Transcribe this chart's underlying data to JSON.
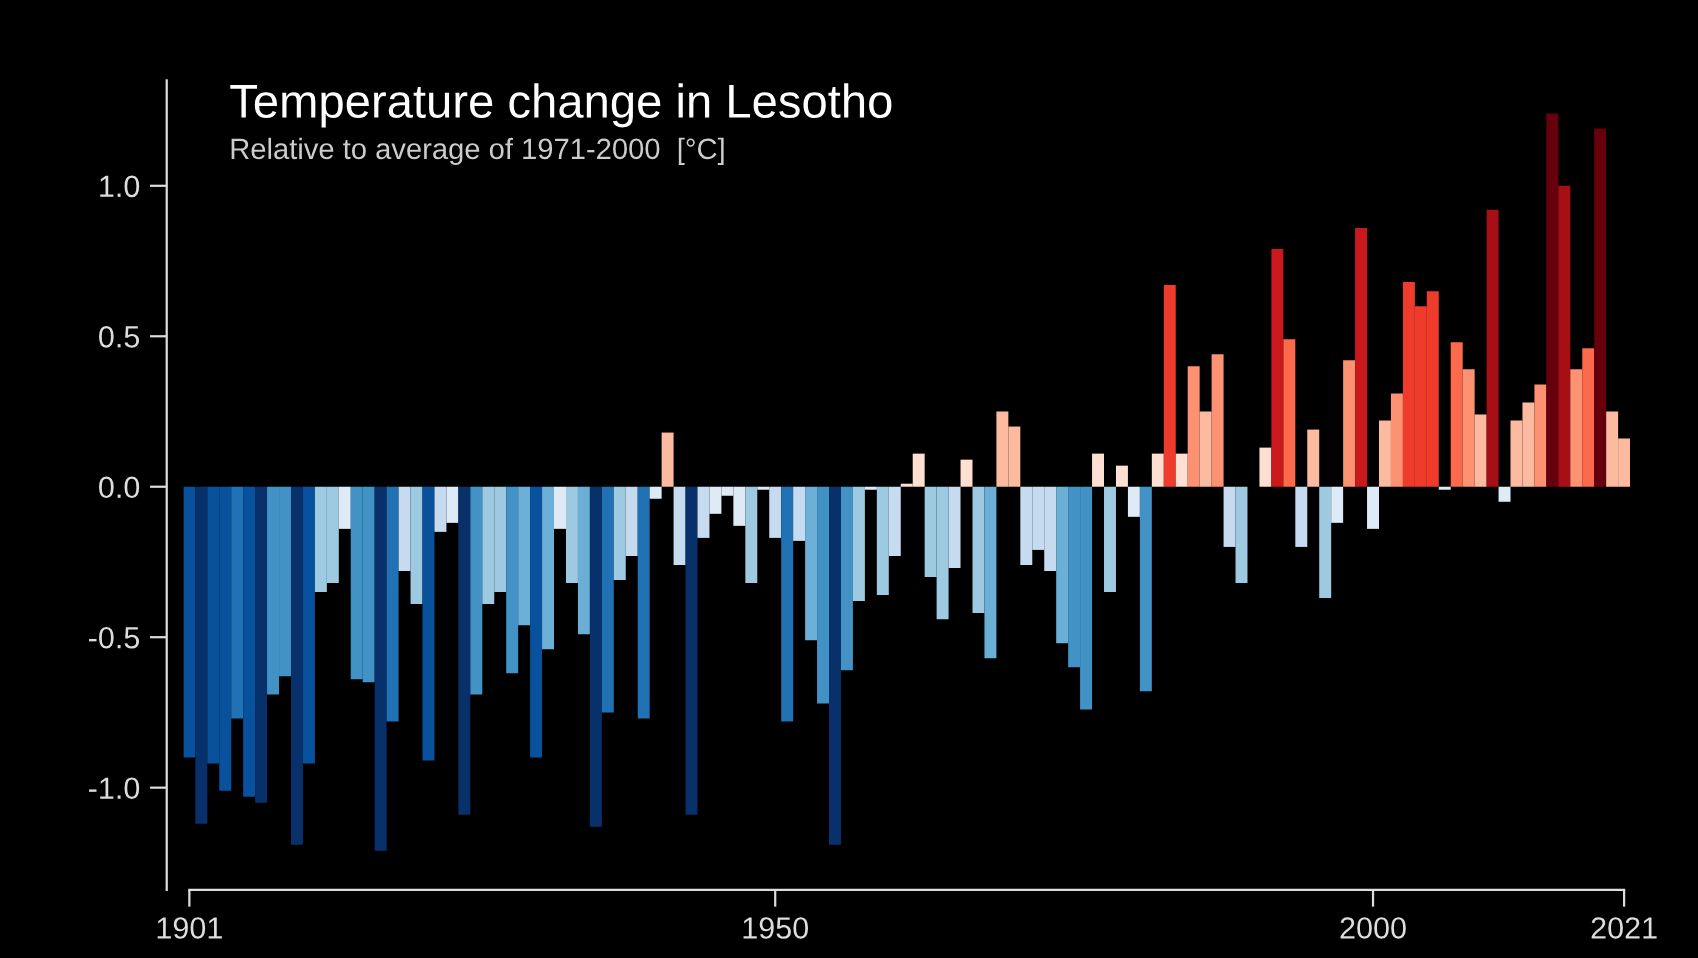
{
  "chart_data": {
    "type": "bar",
    "title": "Temperature change in Lesotho",
    "subtitle": "Relative to average of 1971-2000  [°C]",
    "x": [
      1901,
      1902,
      1903,
      1904,
      1905,
      1906,
      1907,
      1908,
      1909,
      1910,
      1911,
      1912,
      1913,
      1914,
      1915,
      1916,
      1917,
      1918,
      1919,
      1920,
      1921,
      1922,
      1923,
      1924,
      1925,
      1926,
      1927,
      1928,
      1929,
      1930,
      1931,
      1932,
      1933,
      1934,
      1935,
      1936,
      1937,
      1938,
      1939,
      1940,
      1941,
      1942,
      1943,
      1944,
      1945,
      1946,
      1947,
      1948,
      1949,
      1950,
      1951,
      1952,
      1953,
      1954,
      1955,
      1956,
      1957,
      1958,
      1959,
      1960,
      1961,
      1962,
      1963,
      1964,
      1965,
      1966,
      1967,
      1968,
      1969,
      1970,
      1971,
      1972,
      1973,
      1974,
      1975,
      1976,
      1977,
      1978,
      1979,
      1980,
      1981,
      1982,
      1983,
      1984,
      1985,
      1986,
      1987,
      1988,
      1989,
      1990,
      1991,
      1992,
      1993,
      1994,
      1995,
      1996,
      1997,
      1998,
      1999,
      2000,
      2001,
      2002,
      2003,
      2004,
      2005,
      2006,
      2007,
      2008,
      2009,
      2010,
      2011,
      2012,
      2013,
      2014,
      2015,
      2016,
      2017,
      2018,
      2019,
      2020,
      2021
    ],
    "values": [
      -0.9,
      -1.12,
      -0.92,
      -1.01,
      -0.77,
      -1.03,
      -1.05,
      -0.69,
      -0.63,
      -1.19,
      -0.92,
      -0.35,
      -0.32,
      -0.14,
      -0.64,
      -0.65,
      -1.21,
      -0.78,
      -0.28,
      -0.39,
      -0.91,
      -0.15,
      -0.12,
      -1.09,
      -0.69,
      -0.39,
      -0.35,
      -0.62,
      -0.46,
      -0.9,
      -0.54,
      -0.14,
      -0.32,
      -0.49,
      -1.13,
      -0.75,
      -0.31,
      -0.23,
      -0.77,
      -0.04,
      0.18,
      -0.26,
      -1.09,
      -0.17,
      -0.09,
      -0.03,
      -0.13,
      -0.32,
      -0.01,
      -0.17,
      -0.78,
      -0.18,
      -0.51,
      -0.72,
      -1.19,
      -0.61,
      -0.38,
      -0.01,
      -0.36,
      -0.23,
      0.01,
      0.11,
      -0.3,
      -0.44,
      -0.27,
      0.09,
      -0.42,
      -0.57,
      0.25,
      0.2,
      -0.26,
      -0.21,
      -0.28,
      -0.52,
      -0.6,
      -0.74,
      0.11,
      -0.35,
      0.07,
      -0.1,
      -0.68,
      0.11,
      0.67,
      0.11,
      0.4,
      0.25,
      0.44,
      -0.2,
      -0.32,
      0,
      0.13,
      0.79,
      0.49,
      -0.2,
      0.19,
      -0.37,
      -0.12,
      0.42,
      0.86,
      -0.14,
      0.22,
      0.31,
      0.68,
      0.6,
      0.65,
      -0.01,
      0.48,
      0.39,
      0.24,
      0.92,
      -0.05,
      0.22,
      0.28,
      0.34,
      1.24,
      1.0,
      0.39,
      0.46,
      1.19,
      0.25,
      0.16
    ],
    "colors": [
      "#08519c",
      "#08306b",
      "#08519c",
      "#08519c",
      "#2171b5",
      "#08519c",
      "#08306b",
      "#4292c6",
      "#4292c6",
      "#08306b",
      "#08519c",
      "#9ecae1",
      "#9ecae1",
      "#deebf7",
      "#4292c6",
      "#4292c6",
      "#08306b",
      "#2171b5",
      "#c6dbef",
      "#9ecae1",
      "#08519c",
      "#c6dbef",
      "#deebf7",
      "#08306b",
      "#4292c6",
      "#9ecae1",
      "#9ecae1",
      "#4292c6",
      "#6baed6",
      "#08519c",
      "#6baed6",
      "#deebf7",
      "#9ecae1",
      "#6baed6",
      "#08306b",
      "#2171b5",
      "#9ecae1",
      "#c6dbef",
      "#2171b5",
      "#deebf7",
      "#fcbba1",
      "#c6dbef",
      "#08306b",
      "#c6dbef",
      "#deebf7",
      "#deebf7",
      "#deebf7",
      "#9ecae1",
      "#deebf7",
      "#c6dbef",
      "#2171b5",
      "#c6dbef",
      "#6baed6",
      "#4292c6",
      "#08306b",
      "#4292c6",
      "#9ecae1",
      "#deebf7",
      "#9ecae1",
      "#c6dbef",
      "#fee0d2",
      "#fee0d2",
      "#9ecae1",
      "#9ecae1",
      "#c6dbef",
      "#fee0d2",
      "#9ecae1",
      "#6baed6",
      "#fcbba1",
      "#fcbba1",
      "#c6dbef",
      "#c6dbef",
      "#c6dbef",
      "#6baed6",
      "#4292c6",
      "#4292c6",
      "#fee0d2",
      "#9ecae1",
      "#fee0d2",
      "#deebf7",
      "#4292c6",
      "#fee0d2",
      "#ef3b2c",
      "#fee0d2",
      "#fc9272",
      "#fcbba1",
      "#fc9272",
      "#c6dbef",
      "#9ecae1",
      "#fee0d2",
      "#fee0d2",
      "#cb181d",
      "#fb6a4a",
      "#c6dbef",
      "#fcbba1",
      "#9ecae1",
      "#deebf7",
      "#fc9272",
      "#cb181d",
      "#deebf7",
      "#fcbba1",
      "#fc9272",
      "#ef3b2c",
      "#ef3b2c",
      "#ef3b2c",
      "#deebf7",
      "#fb6a4a",
      "#fc9272",
      "#fcbba1",
      "#a50f15",
      "#deebf7",
      "#fcbba1",
      "#fcbba1",
      "#fc9272",
      "#67000d",
      "#a50f15",
      "#fc9272",
      "#fb6a4a",
      "#67000d",
      "#fcbba1",
      "#fcbba1"
    ],
    "xlim": [
      1900.5,
      2021.5
    ],
    "xticks": [
      1901,
      1950,
      2000,
      2021
    ],
    "ylim": [
      -1.34,
      1.35
    ],
    "yticks": [
      {
        "value": -1,
        "label": "-1.0"
      },
      {
        "value": -0.5,
        "label": "-0.5"
      },
      {
        "value": 0,
        "label": "0.0"
      },
      {
        "value": 0.5,
        "label": "0.5"
      },
      {
        "value": 1,
        "label": "1.0"
      }
    ],
    "grid": false,
    "legend": false
  }
}
